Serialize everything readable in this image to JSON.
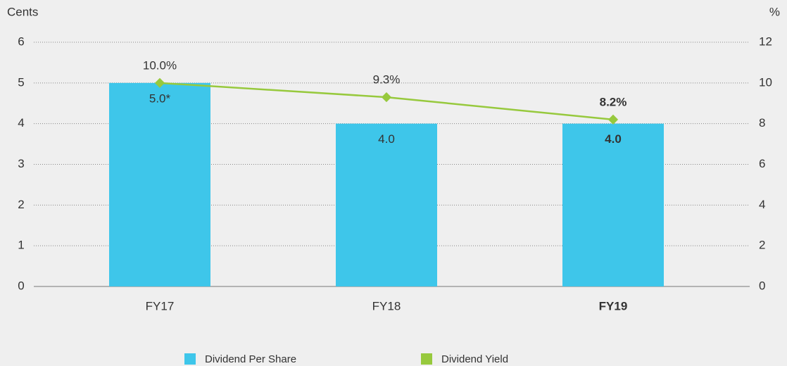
{
  "chart_data": {
    "type": "bar",
    "y_label": "Cents",
    "y2_label": "%",
    "categories": [
      "FY17",
      "FY18",
      "FY19"
    ],
    "bold": [
      false,
      false,
      true
    ],
    "series": [
      {
        "name": "Dividend Per Share",
        "type": "bar",
        "color": "#3ec6ea",
        "values": [
          5.0,
          4.0,
          4.0
        ],
        "value_labels": [
          "5.0*",
          "4.0",
          "4.0"
        ]
      },
      {
        "name": "Dividend Yield",
        "type": "line",
        "axis": "y2",
        "color": "#97c93d",
        "values": [
          10.0,
          9.3,
          8.2
        ],
        "value_labels": [
          "10.0%",
          "9.3%",
          "8.2%"
        ]
      }
    ],
    "ylim": [
      0,
      6
    ],
    "yticks": [
      0,
      1,
      2,
      3,
      4,
      5,
      6
    ],
    "y2lim": [
      0,
      12
    ],
    "y2ticks": [
      0,
      2,
      4,
      6,
      8,
      10,
      12
    ],
    "grid": true,
    "legend": "bottom"
  }
}
